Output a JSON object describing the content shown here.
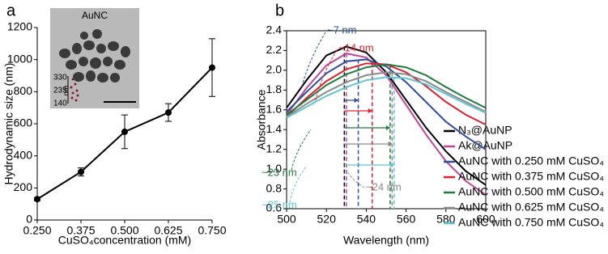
{
  "chart_data": [
    {
      "type": "line",
      "panel_label": "a",
      "x_label": "CuSO₄concentration (mM)",
      "y_label": "Hydrodynamic size (nm)",
      "x": [
        0.25,
        0.375,
        0.5,
        0.625,
        0.75
      ],
      "values": [
        130,
        300,
        550,
        670,
        950
      ],
      "errors": [
        10,
        25,
        105,
        55,
        180
      ],
      "color": "#000000",
      "xlim": [
        0.25,
        0.75
      ],
      "xticks": [
        {
          "value": 0.25,
          "label": "0.250"
        },
        {
          "value": 0.375,
          "label": "0.375"
        },
        {
          "value": 0.5,
          "label": "0.500"
        },
        {
          "value": 0.625,
          "label": "0.625"
        },
        {
          "value": 0.75,
          "label": "0.750"
        }
      ],
      "ylim": [
        0,
        1200
      ],
      "yticks": [
        0,
        200,
        400,
        600,
        800,
        1000,
        1200
      ],
      "inset": {
        "label": "AuNC",
        "scale_ticks": [
          "330",
          "235",
          "140"
        ],
        "scale_unit": "nm"
      }
    },
    {
      "type": "line",
      "panel_label": "b",
      "x_label": "Wavelength (nm)",
      "y_label": "Absorbance",
      "x": [
        500,
        510,
        520,
        530,
        540,
        550,
        560,
        570,
        580,
        590,
        600
      ],
      "xlim": [
        500,
        600
      ],
      "xticks": [
        500,
        520,
        540,
        560,
        580,
        600
      ],
      "ylim": [
        0.6,
        2.4
      ],
      "yticks": [
        0.6,
        0.8,
        {
          "value": 1,
          "label": "1.0"
        },
        1.2,
        1.4,
        1.6,
        1.8,
        {
          "value": 2,
          "label": "2.0"
        },
        2.2,
        2.4
      ],
      "series": [
        {
          "name": "N₃@AuNP",
          "color": "#000000",
          "peak": 529,
          "values": [
            1.62,
            1.9,
            2.15,
            2.24,
            2.18,
            1.98,
            1.7,
            1.42,
            1.18,
            0.98,
            0.84
          ]
        },
        {
          "name": "Ak@AuNP",
          "color": "#c0449a",
          "peak": 530,
          "values": [
            1.55,
            1.82,
            2.05,
            2.17,
            2.13,
            1.95,
            1.65,
            1.35,
            1.08,
            0.88,
            0.74
          ]
        },
        {
          "name": "AuNC with 0.250 mM CuSO₄",
          "color": "#2e4e9e",
          "peak": 536,
          "values": [
            1.58,
            1.78,
            1.97,
            2.09,
            2.11,
            2.04,
            1.88,
            1.68,
            1.48,
            1.33,
            1.2
          ]
        },
        {
          "name": "AuNC with 0.375 mM CuSO₄",
          "color": "#e0202e",
          "peak": 543,
          "values": [
            1.53,
            1.72,
            1.89,
            2.01,
            2.07,
            2.06,
            1.98,
            1.84,
            1.68,
            1.55,
            1.45
          ]
        },
        {
          "name": "AuNC with 0.500 mM CuSO₄",
          "color": "#1e7b3e",
          "peak": 552,
          "values": [
            1.55,
            1.7,
            1.85,
            1.96,
            2.03,
            2.06,
            2.03,
            1.95,
            1.83,
            1.72,
            1.62
          ]
        },
        {
          "name": "AuNC with 0.625 mM CuSO₄",
          "color": "#8a8a8a",
          "peak": 553,
          "values": [
            1.53,
            1.66,
            1.78,
            1.88,
            1.95,
            1.98,
            1.96,
            1.89,
            1.78,
            1.68,
            1.58
          ]
        },
        {
          "name": "AuNC with 0.750 mM CuSO₄",
          "color": "#5fc6d6",
          "peak": 554,
          "values": [
            1.52,
            1.63,
            1.74,
            1.83,
            1.9,
            1.93,
            1.92,
            1.86,
            1.76,
            1.66,
            1.57
          ]
        }
      ],
      "annotations": [
        {
          "text": "~7 nm",
          "color": "#2e4e9e"
        },
        {
          "text": "~14 nm",
          "color": "#e0202e"
        },
        {
          "text": "~23 nm",
          "color": "#1e7b3e"
        },
        {
          "text": "~24 nm",
          "color": "#8a8a8a"
        },
        {
          "text": "~25 nm",
          "color": "#5fc6d6"
        }
      ]
    }
  ]
}
